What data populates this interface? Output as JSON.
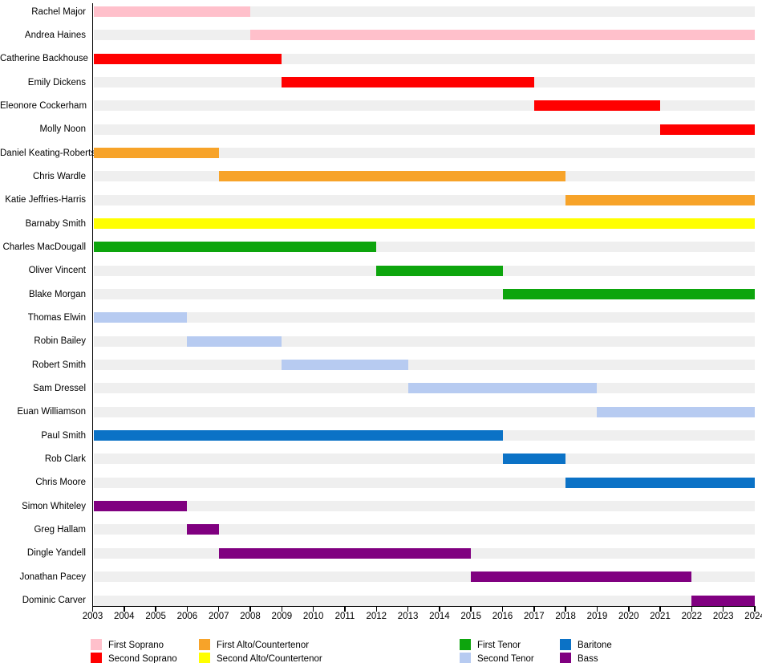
{
  "chart_data": {
    "type": "bar",
    "variant": "timeline-gantt",
    "description": "Membership timeline bar chart: one row per member, colored by voice part, spanning years of tenure",
    "x_axis": {
      "min": 2003,
      "max": 2024,
      "ticks": [
        "2003",
        "2004",
        "2005",
        "2006",
        "2007",
        "2008",
        "2009",
        "2010",
        "2011",
        "2012",
        "2013",
        "2014",
        "2015",
        "2016",
        "2017",
        "2018",
        "2019",
        "2020",
        "2021",
        "2022",
        "2023",
        "2024"
      ]
    },
    "grid": false,
    "track_color": "#EFEFEF",
    "axis_color": "#000000",
    "parts": [
      {
        "label": "First Soprano",
        "color": "#FFC0CB"
      },
      {
        "label": "Second Soprano",
        "color": "#FF0000"
      },
      {
        "label": "First Alto/Countertenor",
        "color": "#F7A329"
      },
      {
        "label": "Second Alto/Countertenor",
        "color": "#FFFF00"
      },
      {
        "label": "First Tenor",
        "color": "#0DA50D"
      },
      {
        "label": "Second Tenor",
        "color": "#B7CBF1"
      },
      {
        "label": "Baritone",
        "color": "#0B72C6"
      },
      {
        "label": "Bass",
        "color": "#800080"
      }
    ],
    "legend": {
      "position": "bottom",
      "columns": [
        [
          0,
          1
        ],
        [
          2,
          3
        ],
        [
          4,
          5
        ],
        [
          6,
          7
        ]
      ]
    },
    "rows": [
      {
        "name": "Rachel Major",
        "part": "First Soprano",
        "start": 2003,
        "end": 2008
      },
      {
        "name": "Andrea Haines",
        "part": "First Soprano",
        "start": 2008,
        "end": 2024
      },
      {
        "name": "Catherine Backhouse",
        "part": "Second Soprano",
        "start": 2003,
        "end": 2009
      },
      {
        "name": "Emily Dickens",
        "part": "Second Soprano",
        "start": 2009,
        "end": 2017
      },
      {
        "name": "Eleonore Cockerham",
        "part": "Second Soprano",
        "start": 2017,
        "end": 2021
      },
      {
        "name": "Molly Noon",
        "part": "Second Soprano",
        "start": 2021,
        "end": 2024
      },
      {
        "name": "Daniel Keating-Roberts",
        "part": "First Alto/Countertenor",
        "start": 2003,
        "end": 2007
      },
      {
        "name": "Chris Wardle",
        "part": "First Alto/Countertenor",
        "start": 2007,
        "end": 2018
      },
      {
        "name": "Katie Jeffries-Harris",
        "part": "First Alto/Countertenor",
        "start": 2018,
        "end": 2024
      },
      {
        "name": "Barnaby Smith",
        "part": "Second Alto/Countertenor",
        "start": 2003,
        "end": 2024
      },
      {
        "name": "Charles MacDougall",
        "part": "First Tenor",
        "start": 2003,
        "end": 2012
      },
      {
        "name": "Oliver Vincent",
        "part": "First Tenor",
        "start": 2012,
        "end": 2016
      },
      {
        "name": "Blake Morgan",
        "part": "First Tenor",
        "start": 2016,
        "end": 2024
      },
      {
        "name": "Thomas Elwin",
        "part": "Second Tenor",
        "start": 2003,
        "end": 2006
      },
      {
        "name": "Robin Bailey",
        "part": "Second Tenor",
        "start": 2006,
        "end": 2009
      },
      {
        "name": "Robert Smith",
        "part": "Second Tenor",
        "start": 2009,
        "end": 2013
      },
      {
        "name": "Sam Dressel",
        "part": "Second Tenor",
        "start": 2013,
        "end": 2019
      },
      {
        "name": "Euan Williamson",
        "part": "Second Tenor",
        "start": 2019,
        "end": 2024
      },
      {
        "name": "Paul Smith",
        "part": "Baritone",
        "start": 2003,
        "end": 2016
      },
      {
        "name": "Rob Clark",
        "part": "Baritone",
        "start": 2016,
        "end": 2018
      },
      {
        "name": "Chris Moore",
        "part": "Baritone",
        "start": 2018,
        "end": 2024
      },
      {
        "name": "Simon Whiteley",
        "part": "Bass",
        "start": 2003,
        "end": 2006
      },
      {
        "name": "Greg Hallam",
        "part": "Bass",
        "start": 2006,
        "end": 2007
      },
      {
        "name": "Dingle Yandell",
        "part": "Bass",
        "start": 2007,
        "end": 2015
      },
      {
        "name": "Jonathan Pacey",
        "part": "Bass",
        "start": 2015,
        "end": 2022
      },
      {
        "name": "Dominic Carver",
        "part": "Bass",
        "start": 2022,
        "end": 2024
      }
    ]
  }
}
